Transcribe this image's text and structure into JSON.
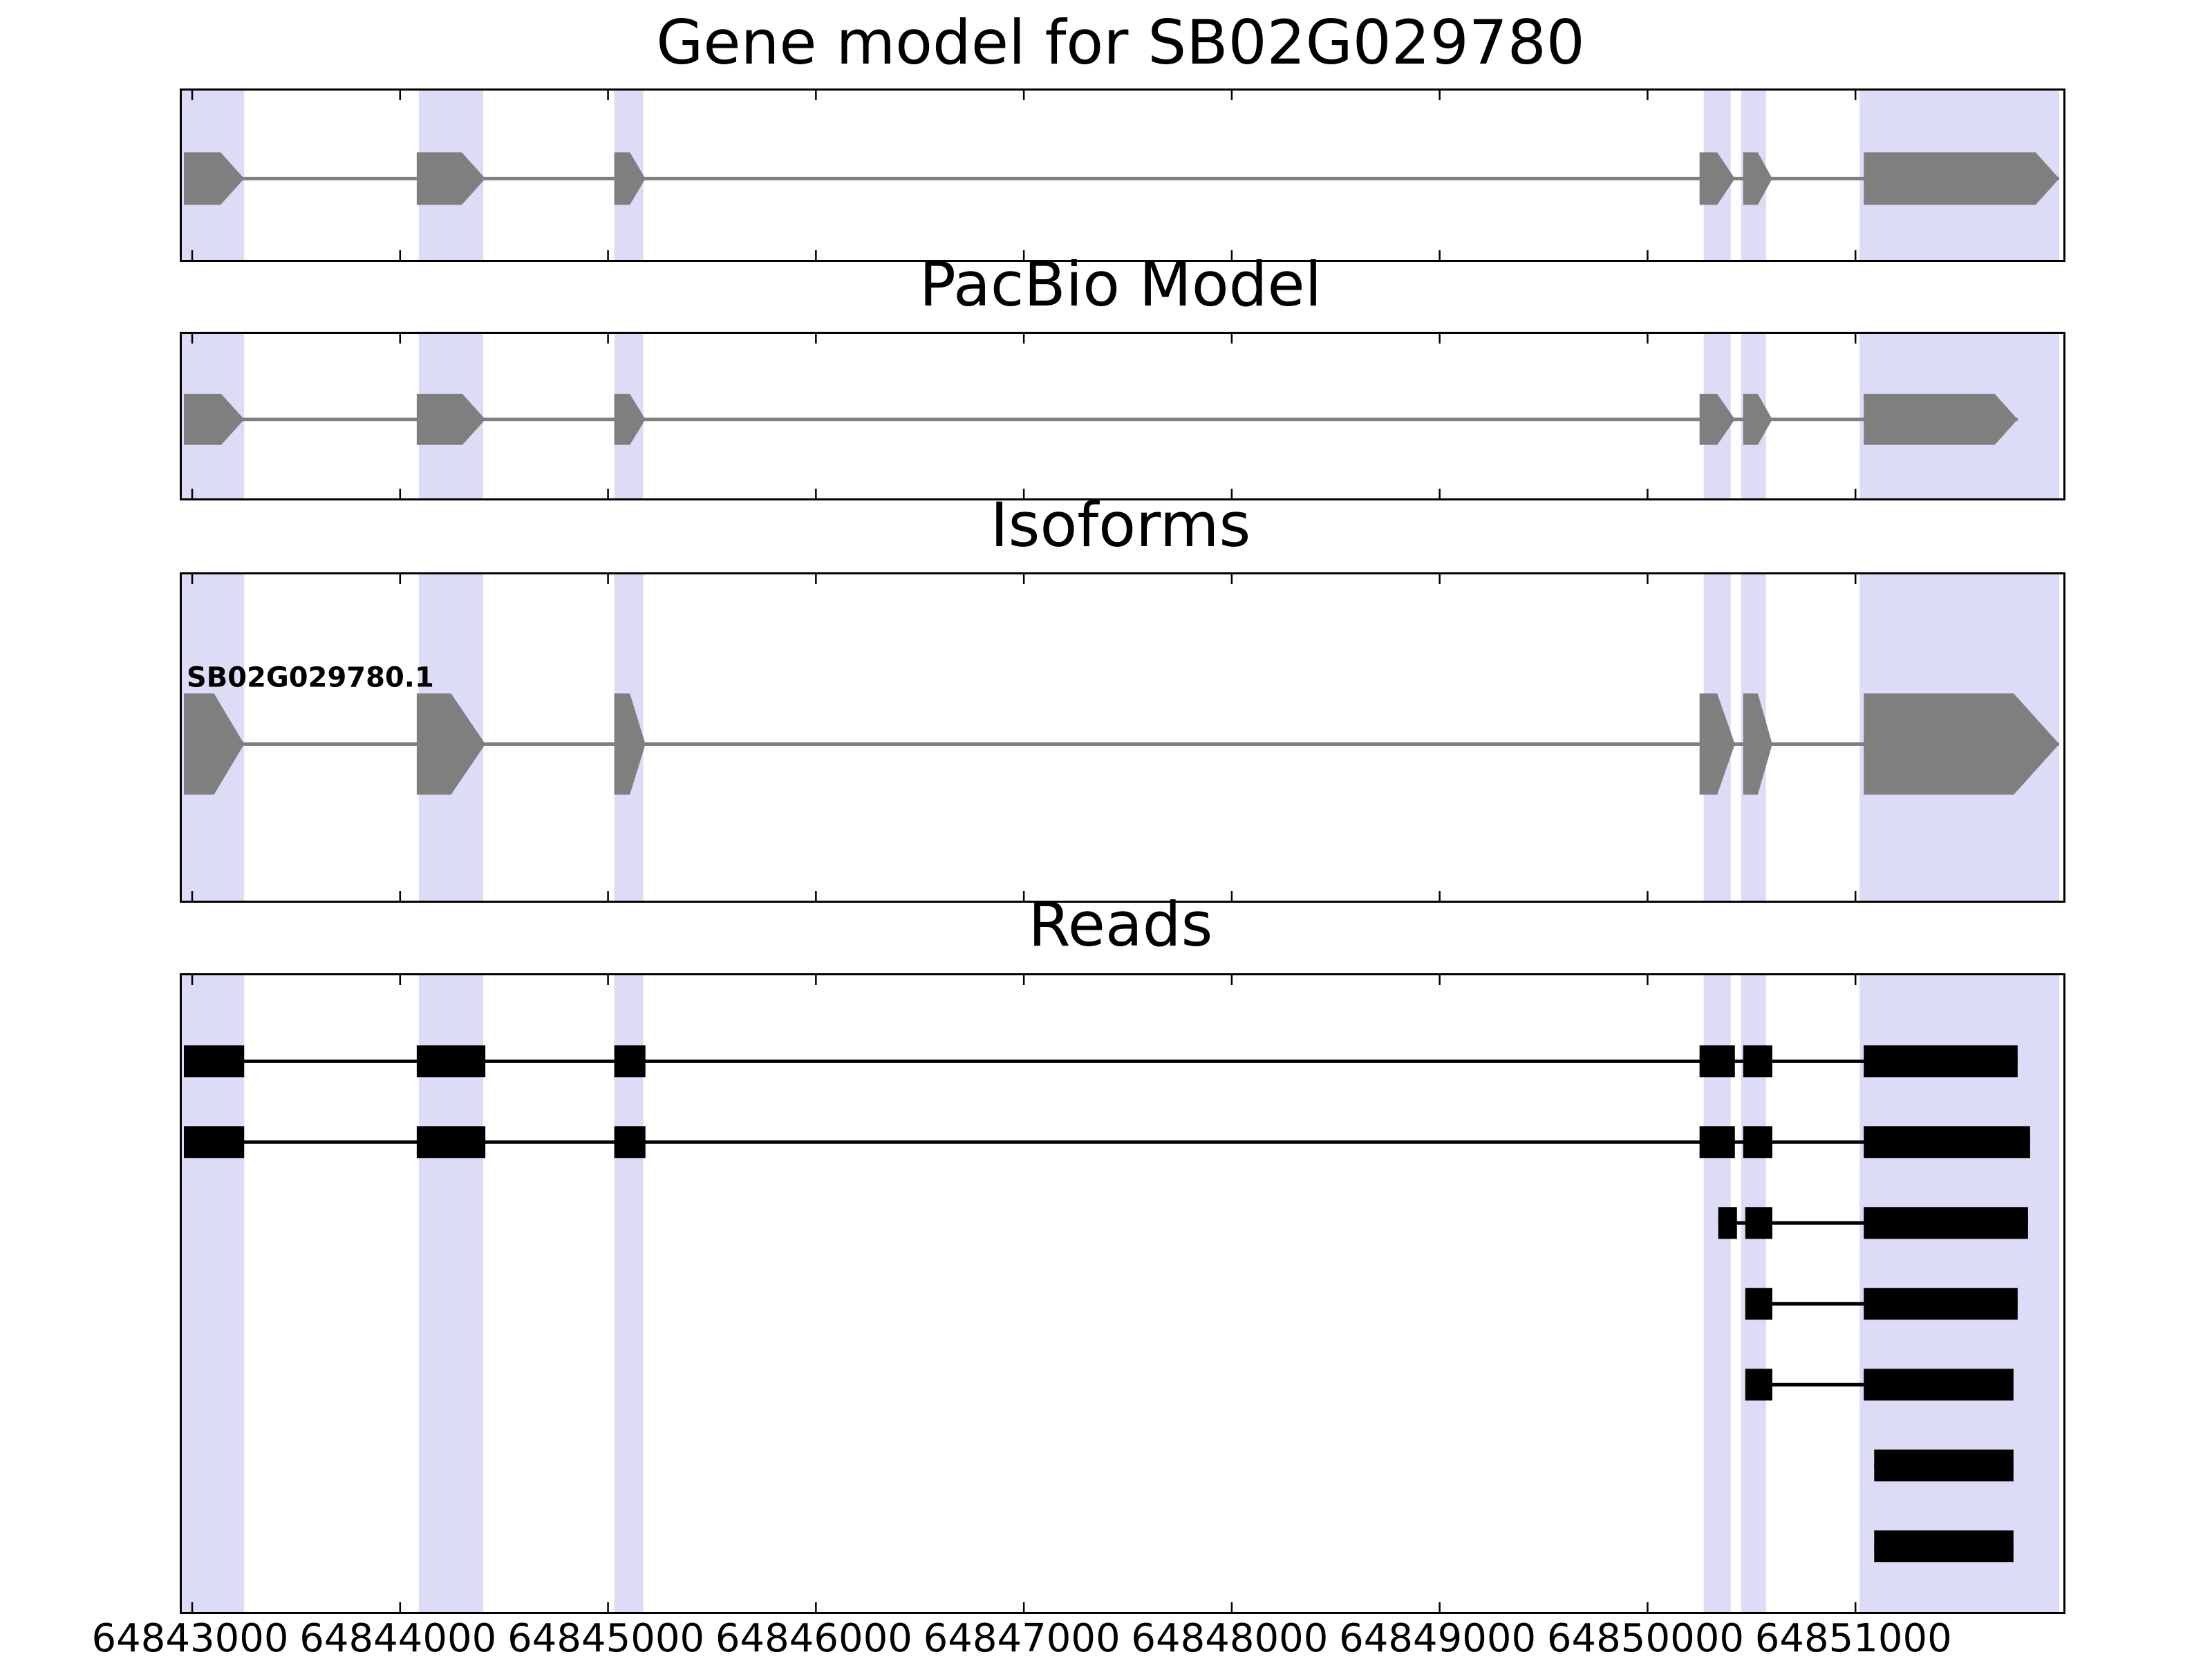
{
  "colors": {
    "background": "#ffffff",
    "highlight": "#dcdcf6",
    "gene_fill": "#7f7f7f",
    "gene_line": "#7f7f7f",
    "read_fill": "#000000",
    "axis": "#000000"
  },
  "chart_data": {
    "type": "gene-model-tracks",
    "x_range": [
      64842950,
      64852000
    ],
    "x_ticks": [
      64843000,
      64844000,
      64845000,
      64846000,
      64847000,
      64848000,
      64849000,
      64850000,
      64851000
    ],
    "grid": false,
    "highlight_regions": [
      [
        64842950,
        64843250
      ],
      [
        64844090,
        64844400
      ],
      [
        64845030,
        64845170
      ],
      [
        64850270,
        64850400
      ],
      [
        64850450,
        64850570
      ],
      [
        64851020,
        64851980
      ]
    ],
    "panels": [
      {
        "id": "gene",
        "title": "Gene model for SB02G029780",
        "kind": "model",
        "tracks": [
          {
            "label": "",
            "strand": "+",
            "exons": [
              [
                64842960,
                64843250
              ],
              [
                64844080,
                64844410
              ],
              [
                64845030,
                64845180
              ],
              [
                64850250,
                64850420
              ],
              [
                64850460,
                64850600
              ],
              [
                64851040,
                64851980
              ]
            ]
          }
        ]
      },
      {
        "id": "pacbio",
        "title": "PacBio Model",
        "kind": "model",
        "tracks": [
          {
            "label": "",
            "strand": "+",
            "exons": [
              [
                64842960,
                64843250
              ],
              [
                64844080,
                64844410
              ],
              [
                64845030,
                64845180
              ],
              [
                64850250,
                64850420
              ],
              [
                64850460,
                64850600
              ],
              [
                64851040,
                64851780
              ]
            ]
          }
        ]
      },
      {
        "id": "isoforms",
        "title": "Isoforms",
        "kind": "model",
        "tracks": [
          {
            "label": "SB02G029780.1",
            "strand": "+",
            "exons": [
              [
                64842960,
                64843250
              ],
              [
                64844080,
                64844410
              ],
              [
                64845030,
                64845180
              ],
              [
                64850250,
                64850420
              ],
              [
                64850460,
                64850600
              ],
              [
                64851040,
                64851980
              ]
            ]
          }
        ]
      },
      {
        "id": "reads",
        "title": "Reads",
        "kind": "reads",
        "tracks": [
          {
            "exons": [
              [
                64842960,
                64843250
              ],
              [
                64844080,
                64844410
              ],
              [
                64845030,
                64845180
              ],
              [
                64850250,
                64850420
              ],
              [
                64850460,
                64850600
              ],
              [
                64851040,
                64851780
              ]
            ]
          },
          {
            "exons": [
              [
                64842960,
                64843250
              ],
              [
                64844080,
                64844410
              ],
              [
                64845030,
                64845180
              ],
              [
                64850250,
                64850420
              ],
              [
                64850460,
                64850600
              ],
              [
                64851040,
                64851840
              ]
            ]
          },
          {
            "exons": [
              [
                64850340,
                64850430
              ],
              [
                64850470,
                64850600
              ],
              [
                64851040,
                64851830
              ]
            ]
          },
          {
            "exons": [
              [
                64850470,
                64850600
              ],
              [
                64851040,
                64851780
              ]
            ]
          },
          {
            "exons": [
              [
                64850470,
                64850600
              ],
              [
                64851040,
                64851760
              ]
            ]
          },
          {
            "exons": [
              [
                64851090,
                64851760
              ]
            ]
          },
          {
            "exons": [
              [
                64851090,
                64851760
              ]
            ]
          }
        ]
      }
    ]
  }
}
